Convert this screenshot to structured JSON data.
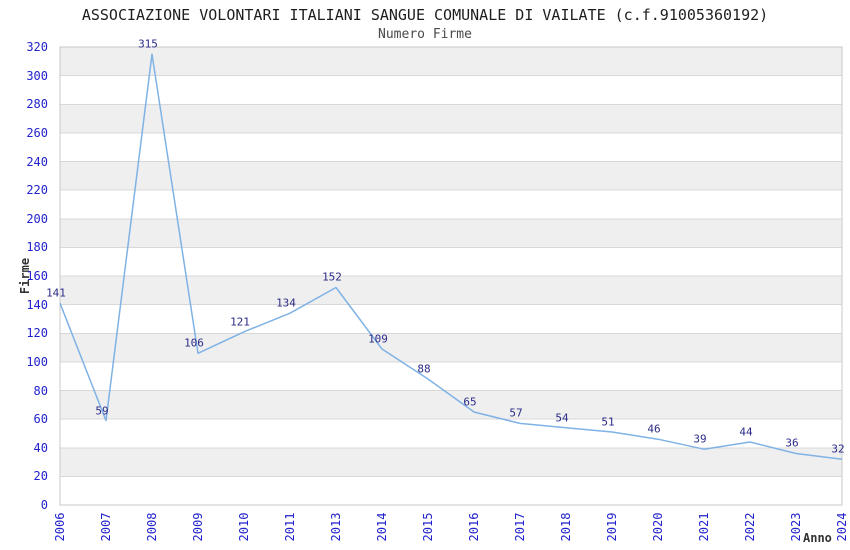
{
  "chart_data": {
    "type": "line",
    "title": "ASSOCIAZIONE VOLONTARI ITALIANI SANGUE COMUNALE DI VAILATE (c.f.91005360192)",
    "subtitle": "Numero Firme",
    "xlabel": "Anno",
    "ylabel": "Firme",
    "categories": [
      "2006",
      "2007",
      "2008",
      "2009",
      "2010",
      "2011",
      "2013",
      "2014",
      "2015",
      "2016",
      "2017",
      "2018",
      "2019",
      "2020",
      "2021",
      "2022",
      "2023",
      "2024"
    ],
    "values": [
      141,
      59,
      315,
      106,
      121,
      134,
      152,
      109,
      88,
      65,
      57,
      54,
      51,
      46,
      39,
      44,
      36,
      32
    ],
    "ylim": [
      0,
      320
    ],
    "ytick_step": 20,
    "grid": true,
    "legend": "none",
    "line_color": "#7fb2e5",
    "band_colors": [
      "#ffffff",
      "#efefef"
    ],
    "grid_color": "#d8d8d8",
    "border_color": "#c8c8c8",
    "tick_label_color": "#2222cc",
    "data_label_color": "#2b2b88"
  }
}
